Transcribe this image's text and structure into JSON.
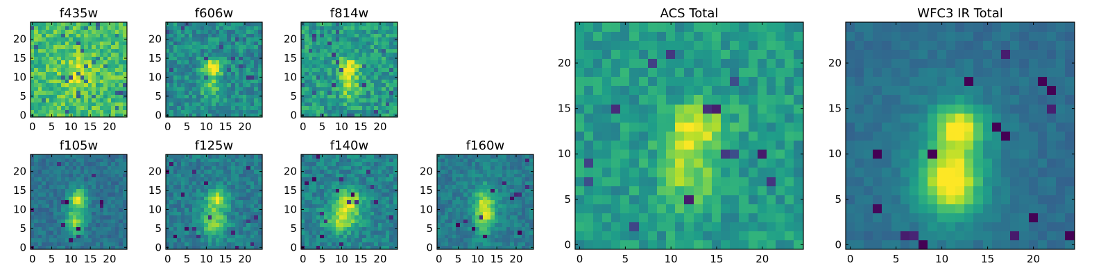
{
  "chart_data": {
    "type": "heatmap",
    "colormap": "viridis",
    "grid": false,
    "panels": [
      {
        "id": "f435w",
        "title": "f435w",
        "nx": 25,
        "ny": 25,
        "xlim": [
          -0.5,
          24.5
        ],
        "ylim": [
          -0.5,
          24.5
        ],
        "xticks": [
          0,
          5,
          10,
          15,
          20
        ],
        "yticks": [
          0,
          5,
          10,
          15,
          20
        ],
        "xtick_labels": [
          "0",
          "5",
          "10",
          "15",
          "20"
        ],
        "ytick_labels": [
          "0",
          "5",
          "10",
          "15",
          "20"
        ],
        "noise": 0.16,
        "background": 0.7,
        "lowv": 0.38,
        "dark_count": 32,
        "blobs": [
          [
            12,
            11,
            2.6,
            3.2,
            0.25
          ]
        ]
      },
      {
        "id": "f606w",
        "title": "f606w",
        "nx": 25,
        "ny": 25,
        "xlim": [
          -0.5,
          24.5
        ],
        "ylim": [
          -0.5,
          24.5
        ],
        "xticks": [
          0,
          5,
          10,
          15,
          20
        ],
        "yticks": [
          0,
          5,
          10,
          15,
          20
        ],
        "xtick_labels": [
          "0",
          "5",
          "10",
          "15",
          "20"
        ],
        "ytick_labels": [
          "0",
          "5",
          "10",
          "15",
          "20"
        ],
        "noise": 0.15,
        "background": 0.48,
        "lowv": 0.3,
        "dark_count": 18,
        "blobs": [
          [
            12,
            13,
            1.8,
            1.5,
            0.5
          ],
          [
            11,
            8,
            1.8,
            3.0,
            0.3
          ]
        ]
      },
      {
        "id": "f814w",
        "title": "f814w",
        "nx": 25,
        "ny": 25,
        "xlim": [
          -0.5,
          24.5
        ],
        "ylim": [
          -0.5,
          24.5
        ],
        "xticks": [
          0,
          5,
          10,
          15,
          20
        ],
        "yticks": [
          0,
          5,
          10,
          15,
          20
        ],
        "xtick_labels": [
          "0",
          "5",
          "10",
          "15",
          "20"
        ],
        "ytick_labels": [
          "0",
          "5",
          "10",
          "15",
          "20"
        ],
        "noise": 0.16,
        "background": 0.55,
        "lowv": 0.3,
        "dark_count": 26,
        "blobs": [
          [
            12,
            13,
            2.0,
            1.6,
            0.4
          ],
          [
            12,
            8,
            1.8,
            2.6,
            0.3
          ]
        ]
      },
      {
        "id": "f105w",
        "title": "f105w",
        "nx": 25,
        "ny": 25,
        "xlim": [
          -0.5,
          24.5
        ],
        "ylim": [
          -0.5,
          24.5
        ],
        "xticks": [
          0,
          5,
          10,
          15,
          20
        ],
        "yticks": [
          0,
          5,
          10,
          15,
          20
        ],
        "xtick_labels": [
          "0",
          "5",
          "10",
          "15",
          "20"
        ],
        "ytick_labels": [
          "0",
          "5",
          "10",
          "15",
          "20"
        ],
        "noise": 0.09,
        "background": 0.38,
        "lowv": 0.12,
        "dark_count": 12,
        "blobs": [
          [
            12,
            13,
            1.6,
            1.8,
            0.55
          ],
          [
            11,
            7,
            1.8,
            2.6,
            0.45
          ]
        ]
      },
      {
        "id": "f125w",
        "title": "f125w",
        "nx": 25,
        "ny": 25,
        "xlim": [
          -0.5,
          24.5
        ],
        "ylim": [
          -0.5,
          24.5
        ],
        "xticks": [
          0,
          5,
          10,
          15,
          20
        ],
        "yticks": [
          0,
          5,
          10,
          15,
          20
        ],
        "xtick_labels": [
          "0",
          "5",
          "10",
          "15",
          "20"
        ],
        "ytick_labels": [
          "0",
          "5",
          "10",
          "15",
          "20"
        ],
        "noise": 0.11,
        "background": 0.42,
        "lowv": 0.15,
        "dark_count": 16,
        "blobs": [
          [
            13,
            13,
            2.0,
            1.8,
            0.45
          ],
          [
            12,
            7,
            2.4,
            3.0,
            0.4
          ]
        ]
      },
      {
        "id": "f140w",
        "title": "f140w",
        "nx": 25,
        "ny": 25,
        "xlim": [
          -0.5,
          24.5
        ],
        "ylim": [
          -0.5,
          24.5
        ],
        "xticks": [
          0,
          5,
          10,
          15,
          20
        ],
        "yticks": [
          0,
          5,
          10,
          15,
          20
        ],
        "xtick_labels": [
          "0",
          "5",
          "10",
          "15",
          "20"
        ],
        "ytick_labels": [
          "0",
          "5",
          "10",
          "15",
          "20"
        ],
        "noise": 0.12,
        "background": 0.45,
        "lowv": 0.15,
        "dark_count": 18,
        "blobs": [
          [
            12,
            12,
            2.6,
            2.4,
            0.45
          ],
          [
            10,
            7,
            3.0,
            2.2,
            0.4
          ]
        ]
      },
      {
        "id": "f160w",
        "title": "f160w",
        "nx": 25,
        "ny": 25,
        "xlim": [
          -0.5,
          24.5
        ],
        "ylim": [
          -0.5,
          24.5
        ],
        "xticks": [
          0,
          5,
          10,
          15,
          20
        ],
        "yticks": [
          0,
          5,
          10,
          15,
          20
        ],
        "xtick_labels": [
          "0",
          "5",
          "10",
          "15",
          "20"
        ],
        "ytick_labels": [
          "0",
          "5",
          "10",
          "15",
          "20"
        ],
        "noise": 0.1,
        "background": 0.42,
        "lowv": 0.12,
        "dark_count": 14,
        "blobs": [
          [
            12,
            10,
            2.0,
            4.0,
            0.55
          ]
        ]
      },
      {
        "id": "acs-total",
        "title": "ACS Total",
        "nx": 25,
        "ny": 25,
        "xlim": [
          -0.5,
          24.5
        ],
        "ylim": [
          -0.5,
          24.5
        ],
        "xticks": [
          0,
          5,
          10,
          15,
          20
        ],
        "yticks": [
          0,
          5,
          10,
          15,
          20
        ],
        "xtick_labels": [
          "0",
          "5",
          "10",
          "15",
          "20"
        ],
        "ytick_labels": [
          "0",
          "5",
          "10",
          "15",
          "20"
        ],
        "noise": 0.12,
        "background": 0.55,
        "lowv": 0.22,
        "dark_count": 14,
        "blobs": [
          [
            13,
            13,
            2.2,
            1.8,
            0.4
          ],
          [
            12,
            8,
            2.0,
            2.8,
            0.3
          ]
        ]
      },
      {
        "id": "wfc3-ir-total",
        "title": "WFC3 IR Total",
        "nx": 25,
        "ny": 25,
        "xlim": [
          -0.5,
          24.5
        ],
        "ylim": [
          -0.5,
          24.5
        ],
        "xticks": [
          0,
          5,
          10,
          15,
          20
        ],
        "yticks": [
          0,
          5,
          10,
          15,
          20
        ],
        "xtick_labels": [
          "0",
          "5",
          "10",
          "15",
          "20"
        ],
        "ytick_labels": [
          "0",
          "5",
          "10",
          "15",
          "20"
        ],
        "noise": 0.05,
        "background": 0.36,
        "lowv": 0.08,
        "dark_count": 16,
        "blobs": [
          [
            12,
            13,
            1.7,
            1.7,
            0.55
          ],
          [
            11,
            7,
            2.0,
            2.4,
            0.6
          ],
          [
            11,
            9,
            4.0,
            5.5,
            0.18
          ]
        ]
      }
    ]
  },
  "colors": {
    "background": "#ffffff",
    "axes": "#000000",
    "viridis_stops": [
      "#440154",
      "#482878",
      "#3e4989",
      "#31688e",
      "#26828e",
      "#1f9e89",
      "#35b779",
      "#6ece58",
      "#b5de2b",
      "#fde725"
    ]
  }
}
